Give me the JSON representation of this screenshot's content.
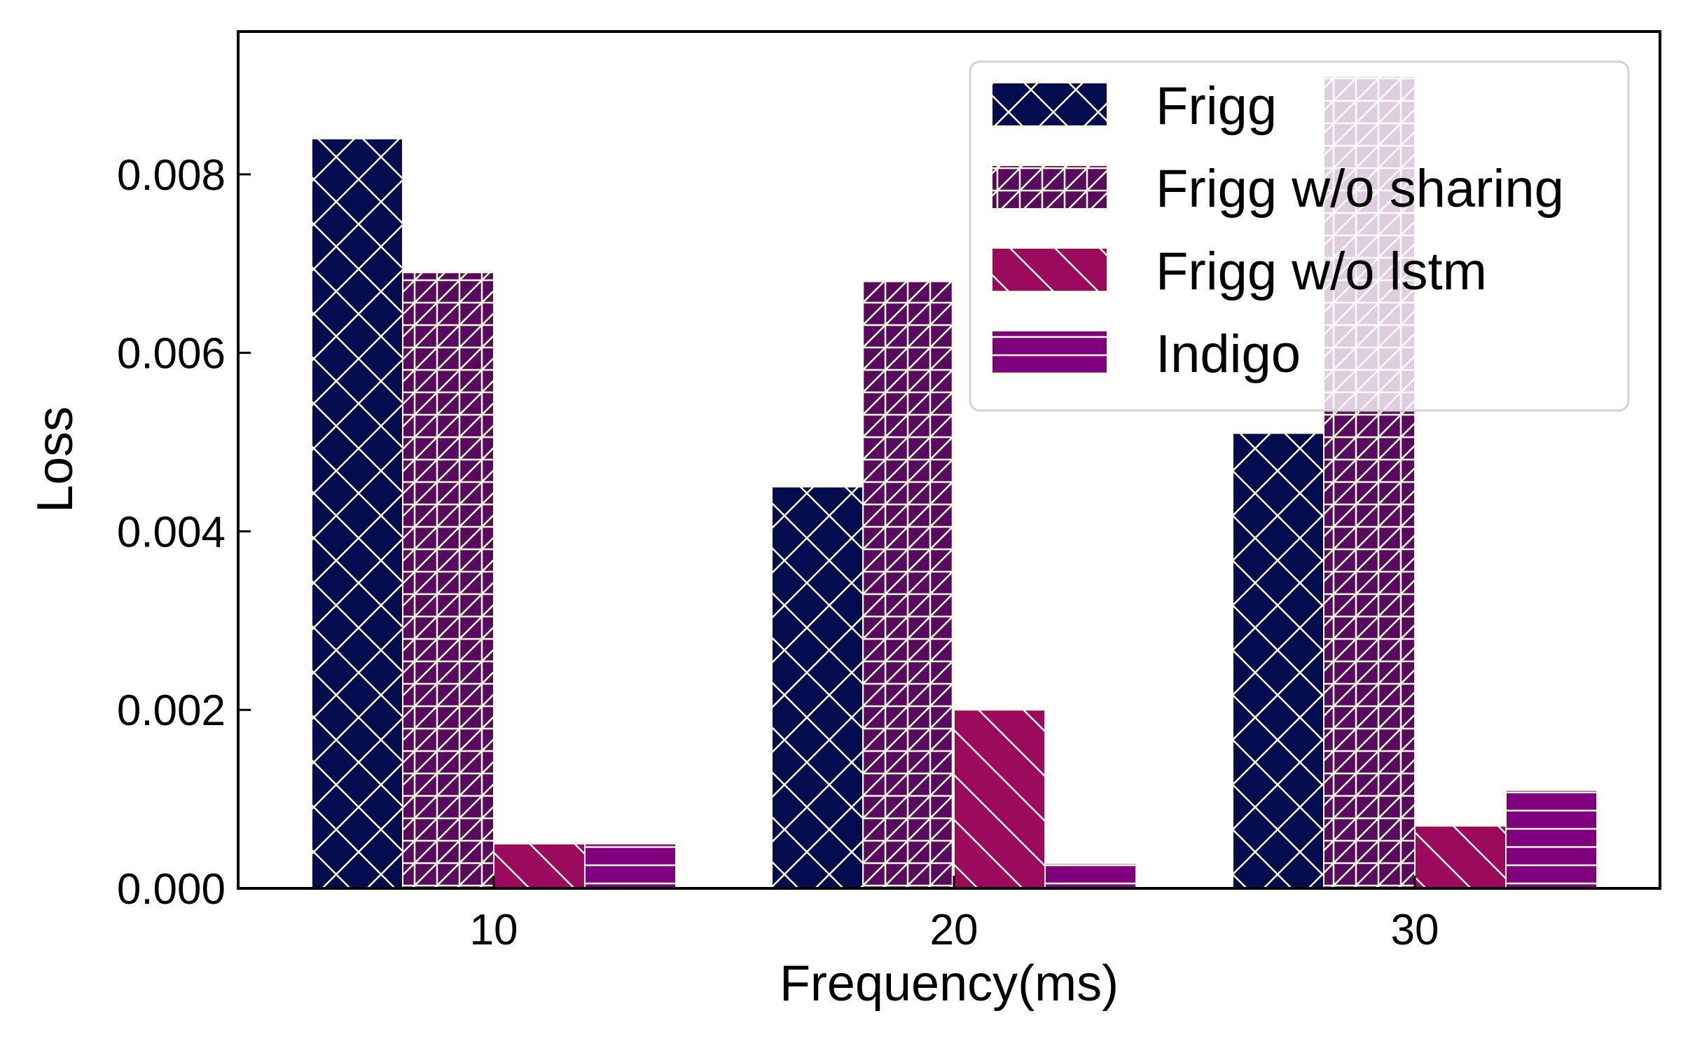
{
  "chart_data": {
    "type": "bar",
    "xlabel": "Frequency(ms)",
    "ylabel": "Loss",
    "categories": [
      "10",
      "20",
      "30"
    ],
    "ylim": [
      0,
      0.0096
    ],
    "yticks": [
      "0.000",
      "0.002",
      "0.004",
      "0.006",
      "0.008"
    ],
    "ytick_values": [
      0,
      0.002,
      0.004,
      0.006,
      0.008
    ],
    "grid": false,
    "legend_position": "top-right",
    "series": [
      {
        "name": "Frigg",
        "values": [
          0.0084,
          0.0045,
          0.0051
        ],
        "color": "#020c4f",
        "hatch": "x"
      },
      {
        "name": "Frigg w/o sharing",
        "values": [
          0.0069,
          0.0068,
          0.0091
        ],
        "color": "#5a0a5e",
        "hatch": "grid"
      },
      {
        "name": "Frigg w/o lstm",
        "values": [
          0.0005,
          0.002,
          0.0007
        ],
        "color": "#9b0a5c",
        "hatch": "backslash"
      },
      {
        "name": "Indigo",
        "values": [
          0.0005,
          0.00028,
          0.0011
        ],
        "color": "#7e007e",
        "hatch": "hline"
      }
    ]
  }
}
